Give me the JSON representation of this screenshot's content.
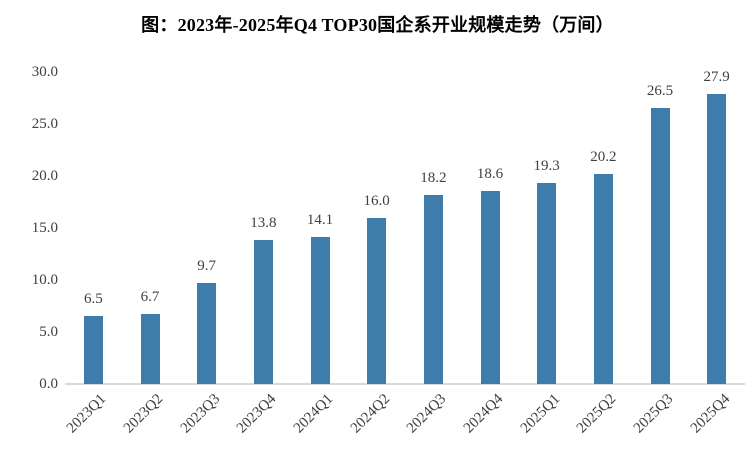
{
  "title": "图：2023年-2025年Q4 TOP30国企系开业规模走势（万间）",
  "chart_data": {
    "type": "bar",
    "title": "图：2023年-2025年Q4 TOP30国企系开业规模走势（万间）",
    "categories": [
      "2023Q1",
      "2023Q2",
      "2023Q3",
      "2023Q4",
      "2024Q1",
      "2024Q2",
      "2024Q3",
      "2024Q4",
      "2025Q1",
      "2025Q2",
      "2025Q3",
      "2025Q4"
    ],
    "values": [
      6.5,
      6.7,
      9.7,
      13.8,
      14.1,
      16.0,
      18.2,
      18.6,
      19.3,
      20.2,
      26.5,
      27.9
    ],
    "data_labels": [
      "6.5",
      "6.7",
      "9.7",
      "13.8",
      "14.1",
      "16.0",
      "18.2",
      "18.6",
      "19.3",
      "20.2",
      "26.5",
      "27.9"
    ],
    "xlabel": "",
    "ylabel": "",
    "ylim": [
      0,
      30
    ],
    "ytick_values": [
      0,
      5,
      10,
      15,
      20,
      25,
      30
    ],
    "ytick_labels": [
      "0.0",
      "5.0",
      "10.0",
      "15.0",
      "20.0",
      "25.0",
      "30.0"
    ],
    "grid": false,
    "legend_position": "none",
    "bar_color": "#3E7CAB",
    "text_color": "#404040",
    "axis_line_color": "#D9D9D9",
    "background_color": "#FFFFFF"
  }
}
